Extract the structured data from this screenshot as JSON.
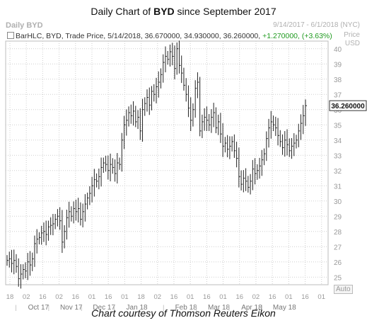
{
  "title_prefix": "Daily Chart of ",
  "title_ticker": "BYD",
  "title_suffix": " since September 2017",
  "header_left": "Daily BYD",
  "header_right": "9/14/2017 - 6/1/2018 (NYC)",
  "price_axis_label_1": "Price",
  "price_axis_label_2": "USD",
  "legend": {
    "text": "BarHLC, BYD, Trade Price, 5/14/2018, 36.670000, 34.930000, 36.260000,",
    "change": "+1.270000, (+3.63%)"
  },
  "last_price_label": "36.260000",
  "auto_label": "Auto",
  "caption": "Chart courtesy of Thomson Reuters Eikon",
  "colors": {
    "bars": "#222222",
    "grid": "#cfcfcf",
    "axis_text": "#9a9a9a",
    "last_price_bg": "#ffffff",
    "change": "#1f9a1f"
  },
  "chart_data": {
    "type": "ohlc-bar",
    "ticker": "BYD",
    "y_ticks": [
      25,
      26,
      27,
      28,
      29,
      30,
      31,
      32,
      33,
      34,
      35,
      36,
      37,
      38,
      39,
      40
    ],
    "ylim": [
      24.5,
      40.5
    ],
    "x_day_ticks": [
      "18",
      "02",
      "16",
      "02",
      "16",
      "01",
      "16",
      "01",
      "18",
      "02",
      "16",
      "01",
      "16",
      "01",
      "16",
      "02",
      "16",
      "01",
      "16",
      "01"
    ],
    "x_month_labels": [
      "Oct 17",
      "Nov 17",
      "Dec 17",
      "Jan 18",
      "Feb 18",
      "Mar 18",
      "Apr 18",
      "May 18"
    ],
    "last": {
      "date": "5/14/2018",
      "high": 36.67,
      "low": 34.93,
      "close": 36.26,
      "change": 1.27,
      "change_pct": 3.63
    },
    "closes": [
      26.1,
      26.2,
      25.9,
      26.1,
      25.7,
      24.9,
      25.2,
      25.5,
      25.4,
      26.0,
      25.8,
      26.2,
      27.2,
      27.5,
      27.6,
      27.9,
      28.0,
      27.8,
      28.3,
      28.4,
      28.5,
      28.8,
      29.0,
      28.7,
      27.3,
      28.0,
      28.9,
      29.3,
      29.0,
      29.5,
      29.3,
      29.5,
      28.8,
      29.3,
      29.8,
      30.2,
      30.5,
      31.0,
      31.4,
      31.3,
      31.6,
      32.2,
      32.5,
      32.4,
      32.0,
      32.4,
      32.2,
      31.8,
      32.5,
      32.4,
      34.0,
      35.0,
      35.3,
      35.8,
      35.6,
      35.9,
      35.2,
      35.5,
      34.6,
      36.0,
      36.4,
      36.8,
      36.3,
      37.2,
      37.0,
      37.5,
      37.8,
      38.3,
      39.1,
      39.5,
      39.3,
      39.8,
      39.5,
      38.7,
      40.0,
      38.9,
      38.4,
      37.6,
      37.0,
      36.1,
      35.3,
      36.0,
      37.4,
      37.8,
      34.6,
      35.2,
      35.5,
      35.3,
      35.0,
      35.5,
      35.8,
      34.8,
      35.2,
      34.4,
      33.6,
      33.8,
      33.4,
      33.6,
      33.9,
      33.3,
      32.8,
      31.6,
      31.1,
      31.5,
      31.3,
      30.9,
      31.3,
      32.1,
      31.8,
      32.0,
      32.3,
      32.7,
      33.1,
      34.1,
      34.8,
      35.2,
      35.0,
      34.8,
      34.3,
      33.9,
      33.5,
      34.0,
      33.7,
      33.3,
      33.6,
      33.8,
      34.0,
      34.6,
      35.1,
      35.6,
      36.26
    ]
  }
}
